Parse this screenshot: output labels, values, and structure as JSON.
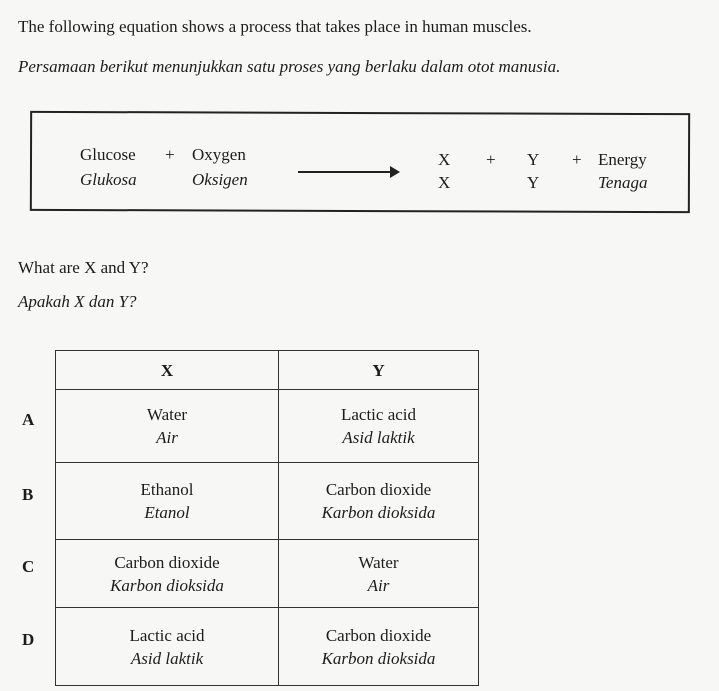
{
  "question": {
    "stem_en": "The following equation shows a process that takes place in human muscles.",
    "stem_ms": "Persamaan berikut menunjukkan satu proses yang berlaku dalam otot manusia.",
    "equation": {
      "glucose_en": "Glucose",
      "glucose_ms": "Glukosa",
      "plus": "+",
      "oxygen_en": "Oxygen",
      "oxygen_ms": "Oksigen",
      "x": "X",
      "y": "Y",
      "energy_en": "Energy",
      "energy_ms": "Tenaga"
    },
    "prompt_en": "What are X and Y?",
    "prompt_ms": "Apakah X dan Y?"
  },
  "table": {
    "headers": [
      "X",
      "Y"
    ],
    "rows": [
      {
        "label": "A",
        "x_en": "Water",
        "x_ms": "Air",
        "y_en": "Lactic acid",
        "y_ms": "Asid laktik"
      },
      {
        "label": "B",
        "x_en": "Ethanol",
        "x_ms": "Etanol",
        "y_en": "Carbon dioxide",
        "y_ms": "Karbon dioksida"
      },
      {
        "label": "C",
        "x_en": "Carbon dioxide",
        "x_ms": "Karbon dioksida",
        "y_en": "Water",
        "y_ms": "Air"
      },
      {
        "label": "D",
        "x_en": "Lactic acid",
        "x_ms": "Asid laktik",
        "y_en": "Carbon dioxide",
        "y_ms": "Karbon dioksida"
      }
    ]
  }
}
